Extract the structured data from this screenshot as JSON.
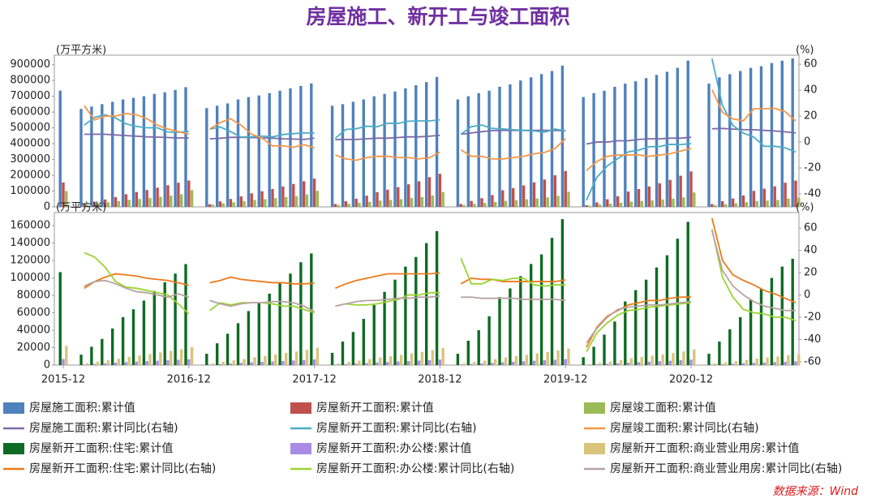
{
  "title": "房屋施工、新开工与竣工面积",
  "source": "数据来源：Wind",
  "chart_data": [
    {
      "type": "combo",
      "y_label": "(万平方米)",
      "y2_label": "(%)",
      "ylim": [
        0,
        960000
      ],
      "yticks": [
        0,
        100000,
        200000,
        300000,
        400000,
        500000,
        600000,
        700000,
        800000,
        900000
      ],
      "y2lim": [
        -50,
        67
      ],
      "y2ticks": [
        -40,
        -20,
        0,
        20,
        40,
        60
      ],
      "series": [
        {
          "name": "房屋施工面积:累计值",
          "type": "bar",
          "color": "#4f81bd",
          "values": [
            735693,
            null,
            620000,
            635000,
            650000,
            665000,
            680000,
            690000,
            700000,
            715000,
            725000,
            740000,
            758000,
            null,
            625000,
            640000,
            655000,
            680000,
            695000,
            705000,
            720000,
            735000,
            750000,
            765000,
            781000,
            null,
            640000,
            650000,
            665000,
            680000,
            700000,
            715000,
            730000,
            750000,
            770000,
            790000,
            822000,
            null,
            680000,
            700000,
            720000,
            735000,
            760000,
            775000,
            800000,
            820000,
            840000,
            860000,
            894000,
            null,
            695000,
            720000,
            735000,
            760000,
            780000,
            795000,
            815000,
            835000,
            855000,
            880000,
            926000,
            null,
            780000,
            820000,
            840000,
            860000,
            880000,
            890000,
            910000,
            925000,
            940000
          ]
        },
        {
          "name": "房屋新开工面积:累计值",
          "type": "bar",
          "color": "#c0504d",
          "values": [
            154454,
            null,
            17000,
            33000,
            47000,
            62000,
            80000,
            94000,
            107000,
            122000,
            137000,
            153000,
            166928,
            null,
            17000,
            35000,
            50000,
            66000,
            86000,
            99000,
            113000,
            129000,
            145000,
            162000,
            178654,
            null,
            18000,
            36000,
            52000,
            71000,
            93000,
            109000,
            125000,
            143000,
            162000,
            188000,
            209342,
            null,
            19000,
            38000,
            55000,
            75000,
            105000,
            119000,
            136000,
            155000,
            173000,
            200000,
            227154,
            null,
            11000,
            28000,
            48000,
            67000,
            97000,
            113000,
            129000,
            149000,
            171000,
            197000,
            224433,
            null,
            18000,
            36000,
            53000,
            72000,
            101000,
            115000,
            130000,
            153000,
            166000
          ]
        },
        {
          "name": "房屋竣工面积:累计值",
          "type": "bar",
          "color": "#9bbb59",
          "values": [
            100039,
            null,
            13000,
            22000,
            29000,
            36000,
            45000,
            50000,
            56000,
            64000,
            71000,
            80000,
            106128,
            null,
            14000,
            22000,
            29000,
            36000,
            44000,
            49000,
            55000,
            62000,
            68000,
            78000,
            101486,
            null,
            13000,
            20000,
            26000,
            32000,
            40000,
            44000,
            49000,
            56000,
            62000,
            72000,
            93550,
            null,
            12000,
            19000,
            25000,
            31000,
            38000,
            42000,
            48000,
            53000,
            60000,
            70000,
            95942,
            null,
            8000,
            14000,
            20000,
            26000,
            33000,
            37000,
            41000,
            47000,
            52000,
            60000,
            91218,
            null,
            11000,
            17000,
            23000,
            30000,
            37000,
            40000,
            44000,
            53000,
            57000
          ]
        },
        {
          "name": "房屋施工面积:累计同比(右轴)",
          "type": "line",
          "axis": "y2",
          "color": "#7b6aa6",
          "values": [
            1.3,
            null,
            6,
            6,
            6,
            5.5,
            5,
            4.5,
            4,
            3.8,
            3.5,
            3.2,
            3.2,
            null,
            2.5,
            2.9,
            3.6,
            3.7,
            3.5,
            3.2,
            3,
            2.5,
            2.3,
            2,
            3,
            null,
            1.8,
            2,
            2,
            2.5,
            3,
            3,
            3.5,
            4,
            4,
            4.5,
            5.2,
            null,
            6,
            7,
            8,
            8.8,
            9,
            9,
            9,
            9,
            9,
            9,
            8.7,
            null,
            -1.5,
            0,
            0,
            1,
            1,
            2,
            2.5,
            2.5,
            3,
            3,
            3.7,
            null,
            10.2,
            10.5,
            10,
            9.6,
            9.5,
            9,
            8.6,
            7.9,
            7
          ]
        },
        {
          "name": "房屋新开工面积:累计同比(右轴)",
          "type": "line",
          "axis": "y2",
          "color": "#4bacc6",
          "values": [
            -14,
            null,
            13,
            19,
            21,
            18.5,
            14,
            12,
            11,
            11,
            7.7,
            7.6,
            8.1,
            null,
            10,
            11.6,
            8,
            3.8,
            4,
            4.6,
            4,
            5.8,
            6.5,
            7,
            7,
            null,
            2.9,
            9.7,
            10.3,
            12.2,
            11.8,
            14.4,
            14.4,
            16.1,
            16.3,
            16.3,
            17.2,
            null,
            6,
            11.9,
            13.1,
            10.5,
            10.1,
            9.5,
            9,
            8.6,
            7.7,
            10,
            8.5,
            null,
            -44.9,
            -27.2,
            -18.4,
            -12.8,
            -7.6,
            -6.2,
            -3.6,
            -3.4,
            -1.8,
            -2,
            -1.2,
            null,
            64.3,
            28.2,
            12.8,
            6.9,
            3.8,
            -3.3,
            -3.2,
            -4.5,
            -7.7
          ]
        },
        {
          "name": "房屋竣工面积:累计同比(右轴)",
          "type": "line",
          "axis": "y2",
          "color": "#f79646",
          "values": [
            -6.9,
            null,
            28,
            17,
            20,
            20,
            22,
            21,
            18,
            13,
            10,
            8,
            6.1,
            null,
            10,
            15,
            18,
            13,
            6,
            3,
            -3,
            -3,
            -4,
            -2,
            -4.4,
            null,
            -10,
            -13,
            -14,
            -12,
            -11,
            -11,
            -12,
            -12,
            -13,
            -12,
            -7.8,
            null,
            -6,
            -11,
            -11,
            -13,
            -13,
            -12,
            -11,
            -9,
            -8,
            -5,
            2.6,
            null,
            -22,
            -15,
            -11,
            -10,
            -10,
            -10,
            -11,
            -10,
            -9,
            -7,
            -4.9,
            null,
            40.4,
            22.9,
            17.9,
            16.4,
            25.7,
            25.7,
            26,
            23.4,
            16.2
          ]
        }
      ]
    },
    {
      "type": "combo",
      "y_label": "(万平方米)",
      "y2_label": "(%)",
      "categories": [
        "2015-12",
        null,
        null,
        null,
        null,
        null,
        null,
        null,
        null,
        null,
        null,
        null,
        "2016-12",
        null,
        null,
        null,
        null,
        null,
        null,
        null,
        null,
        null,
        null,
        null,
        "2017-12",
        null,
        null,
        null,
        null,
        null,
        null,
        null,
        null,
        null,
        null,
        null,
        "2018-12",
        null,
        null,
        null,
        null,
        null,
        null,
        null,
        null,
        null,
        null,
        null,
        "2019-12",
        null,
        null,
        null,
        null,
        null,
        null,
        null,
        null,
        null,
        null,
        null,
        "2020-12",
        null,
        null,
        null,
        null,
        null,
        null,
        null,
        null,
        null,
        null
      ],
      "ylim": [
        0,
        175000
      ],
      "yticks": [
        0,
        20000,
        40000,
        60000,
        80000,
        100000,
        120000,
        140000,
        160000
      ],
      "y2lim": [
        -63,
        74
      ],
      "y2ticks": [
        -60,
        -40,
        -20,
        0,
        20,
        40,
        60
      ],
      "series": [
        {
          "name": "房屋新开工面积:住宅:累计值",
          "type": "bar",
          "color": "#0f6b24",
          "values": [
            106651,
            null,
            12000,
            21000,
            30000,
            42000,
            55000,
            64000,
            74000,
            85000,
            95000,
            105000,
            115911,
            null,
            13000,
            25000,
            36000,
            48000,
            62000,
            72000,
            82000,
            94000,
            105000,
            118000,
            128098,
            null,
            14000,
            27000,
            38000,
            53000,
            69000,
            84000,
            98000,
            113000,
            124000,
            140000,
            153753,
            null,
            13000,
            28000,
            40000,
            56000,
            78000,
            88000,
            102000,
            116000,
            127000,
            146000,
            167463,
            null,
            9000,
            21000,
            35000,
            50000,
            73000,
            86000,
            98000,
            112000,
            126000,
            145000,
            164329,
            null,
            13000,
            27000,
            41000,
            55000,
            75000,
            87000,
            100000,
            113000,
            122000
          ]
        },
        {
          "name": "房屋新开工面积:办公楼:累计值",
          "type": "bar",
          "color": "#a98be6",
          "values": [
            7000,
            null,
            700,
            1300,
            2000,
            2700,
            3400,
            4000,
            4500,
            5000,
            5600,
            6100,
            6700,
            null,
            600,
            1200,
            1800,
            2500,
            3100,
            3700,
            4200,
            4700,
            5200,
            5800,
            6500,
            null,
            600,
            1100,
            1700,
            2300,
            3000,
            3500,
            4100,
            4600,
            5100,
            5700,
            6300,
            null,
            700,
            1300,
            1900,
            2600,
            3300,
            3800,
            4400,
            5000,
            5500,
            6100,
            6800,
            null,
            400,
            900,
            1500,
            2100,
            2800,
            3300,
            3900,
            4400,
            5000,
            5600,
            6300,
            null,
            600,
            1100,
            1600,
            2100,
            2600,
            3000,
            3400,
            3900,
            4400
          ]
        },
        {
          "name": "房屋新开工面积:商业营业用房:累计值",
          "type": "bar",
          "color": "#d9c47c",
          "values": [
            22000,
            null,
            2200,
            4000,
            5500,
            7300,
            9400,
            11000,
            12700,
            14500,
            16200,
            18000,
            20800,
            null,
            2000,
            3800,
            5300,
            7000,
            9000,
            10500,
            12200,
            13900,
            15600,
            17500,
            20000,
            null,
            1900,
            3600,
            5100,
            6800,
            8700,
            10200,
            11800,
            13500,
            15200,
            17200,
            19500,
            null,
            1900,
            3600,
            5100,
            6800,
            8800,
            10200,
            11700,
            13300,
            14900,
            16900,
            19000,
            null,
            1100,
            2500,
            4000,
            5800,
            7800,
            9300,
            10800,
            12300,
            13900,
            15700,
            18000,
            null,
            1800,
            3200,
            4500,
            6000,
            7500,
            8700,
            9900,
            11300,
            12500
          ]
        },
        {
          "name": "房屋新开工面积:住宅:累计同比(右轴)",
          "type": "line",
          "axis": "y2",
          "color": "#ee7a1a",
          "values": [
            -14.6,
            null,
            6,
            12,
            16,
            19,
            18,
            17,
            15,
            14,
            13,
            11,
            8.7,
            null,
            11,
            13,
            16,
            14,
            13,
            12,
            11,
            11,
            10,
            10,
            10.5,
            null,
            6,
            10,
            13,
            15,
            17,
            19,
            19,
            19,
            19,
            19,
            19.7,
            null,
            10,
            15,
            14,
            14,
            12,
            12,
            12,
            12,
            12,
            12,
            13.5,
            null,
            -47,
            -29,
            -19,
            -14,
            -9,
            -7,
            -5,
            -5,
            -3,
            -2,
            -1.9,
            null,
            69,
            31,
            18,
            13,
            9,
            4,
            1,
            -3,
            -7
          ]
        },
        {
          "name": "房屋新开工面积:办公楼:累计同比(右轴)",
          "type": "line",
          "axis": "y2",
          "color": "#9ad431",
          "values": [
            -15,
            null,
            38,
            34,
            25,
            12,
            7,
            6,
            4,
            2,
            0,
            -8,
            -17,
            null,
            -14,
            -7,
            -9,
            -7,
            -7,
            -7,
            -8,
            -10,
            -10,
            -13,
            -16,
            null,
            -10,
            -8,
            -9,
            -9,
            -8,
            -6,
            -4,
            0,
            0,
            2,
            2,
            null,
            33,
            10,
            10,
            14,
            13,
            15,
            15,
            9,
            8,
            9,
            9,
            null,
            -51,
            -34,
            -25,
            -18,
            -14,
            -13,
            -11,
            -10,
            -9,
            -8,
            -7,
            null,
            59,
            16,
            -2,
            -13,
            -16,
            -17,
            -20,
            -20,
            -23
          ]
        },
        {
          "name": "房屋新开工面积:商业营业用房:累计同比(右轴)",
          "type": "line",
          "axis": "y2",
          "color": "#b9a2a2",
          "values": [
            -15,
            null,
            8,
            12,
            13,
            10,
            6,
            3,
            2,
            0,
            -2,
            1,
            -2,
            null,
            -5,
            -8,
            -10,
            -8,
            -7,
            -7,
            -6,
            -6,
            -7,
            -10,
            -15,
            null,
            -10,
            -8,
            -6,
            -5,
            -5,
            -4,
            -3,
            -3,
            -2,
            -2,
            -1,
            null,
            -2,
            -2,
            -3,
            -3,
            -3,
            -3,
            -4,
            -4,
            -4,
            -4,
            -5,
            null,
            -43,
            -30,
            -20,
            -13,
            -11,
            -10,
            -9,
            -9,
            -8,
            -7,
            -6,
            null,
            58,
            22,
            8,
            0,
            -6,
            -10,
            -12,
            -14,
            -14
          ]
        }
      ]
    }
  ]
}
